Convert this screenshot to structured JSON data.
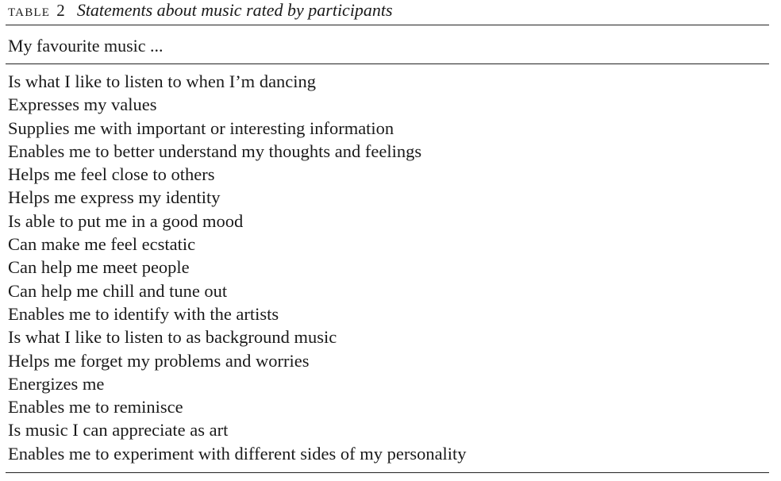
{
  "table": {
    "label": "TABLE",
    "number": "2",
    "title": "Statements about music rated by participants",
    "column_header": "My favourite music ...",
    "rows": [
      "Is what I like to listen to when I’m dancing",
      "Expresses my values",
      "Supplies me with important or interesting information",
      "Enables me to better understand my thoughts and feelings",
      "Helps me feel close to others",
      "Helps me express my identity",
      "Is able to put me in a good mood",
      "Can make me feel ecstatic",
      "Can help me meet people",
      "Can help me chill and tune out",
      "Enables me to identify with the artists",
      "Is what I like to listen to as background music",
      "Helps me forget my problems and worries",
      "Energizes me",
      "Enables me to reminisce",
      "Is music I can appreciate as art",
      "Enables me to experiment with different sides of my personality"
    ]
  }
}
